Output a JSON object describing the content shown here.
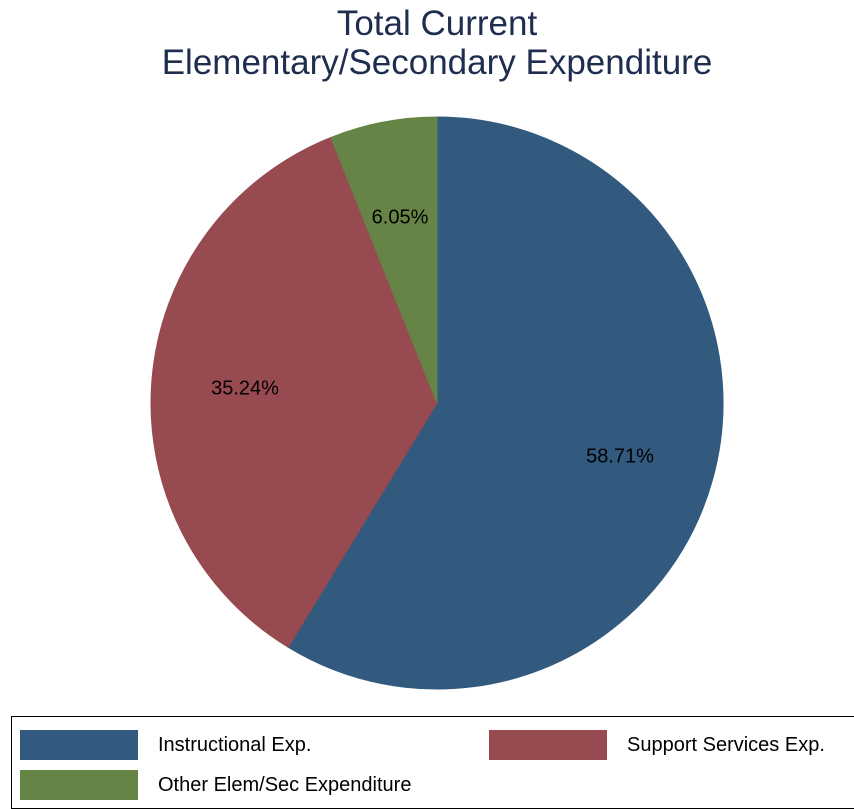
{
  "chart_data": {
    "type": "pie",
    "title": [
      "Total Current",
      "Elementary/Secondary Expenditure"
    ],
    "slices": [
      {
        "name": "Instructional Exp.",
        "value": 58.71,
        "label": "58.71%",
        "color": "#315a7e"
      },
      {
        "name": "Support Services Exp.",
        "value": 35.24,
        "label": "35.24%",
        "color": "#974a4f"
      },
      {
        "name": "Other Elem/Sec Expenditure",
        "value": 6.05,
        "label": "6.05%",
        "color": "#658446"
      }
    ],
    "start_angle": "12 o'clock",
    "direction": "clockwise",
    "legend_placement": "bottom"
  }
}
